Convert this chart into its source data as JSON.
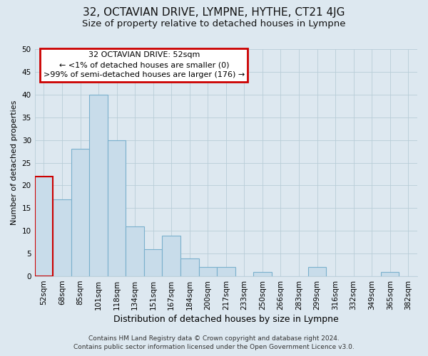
{
  "title": "32, OCTAVIAN DRIVE, LYMPNE, HYTHE, CT21 4JG",
  "subtitle": "Size of property relative to detached houses in Lympne",
  "xlabel": "Distribution of detached houses by size in Lympne",
  "ylabel": "Number of detached properties",
  "bar_labels": [
    "52sqm",
    "68sqm",
    "85sqm",
    "101sqm",
    "118sqm",
    "134sqm",
    "151sqm",
    "167sqm",
    "184sqm",
    "200sqm",
    "217sqm",
    "233sqm",
    "250sqm",
    "266sqm",
    "283sqm",
    "299sqm",
    "316sqm",
    "332sqm",
    "349sqm",
    "365sqm",
    "382sqm"
  ],
  "bar_values": [
    22,
    17,
    28,
    40,
    30,
    11,
    6,
    9,
    4,
    2,
    2,
    0,
    1,
    0,
    0,
    2,
    0,
    0,
    0,
    1,
    0
  ],
  "bar_color": "#c8dcea",
  "bar_edge_color": "#7ab0cc",
  "highlight_index": 0,
  "highlight_edge_color": "#cc0000",
  "ylim": [
    0,
    50
  ],
  "yticks": [
    0,
    5,
    10,
    15,
    20,
    25,
    30,
    35,
    40,
    45,
    50
  ],
  "annotation_box_text_line1": "32 OCTAVIAN DRIVE: 52sqm",
  "annotation_line2": "← <1% of detached houses are smaller (0)",
  "annotation_line3": ">99% of semi-detached houses are larger (176) →",
  "annotation_box_edge_color": "#cc0000",
  "annotation_box_facecolor": "#ffffff",
  "footer_line1": "Contains HM Land Registry data © Crown copyright and database right 2024.",
  "footer_line2": "Contains public sector information licensed under the Open Government Licence v3.0.",
  "bg_color": "#dde8f0",
  "plot_bg_color": "#dde8f0",
  "title_fontsize": 11,
  "subtitle_fontsize": 9.5,
  "xlabel_fontsize": 9,
  "ylabel_fontsize": 8,
  "tick_fontsize": 7.5,
  "footer_fontsize": 6.5,
  "annotation_fontsize": 8
}
